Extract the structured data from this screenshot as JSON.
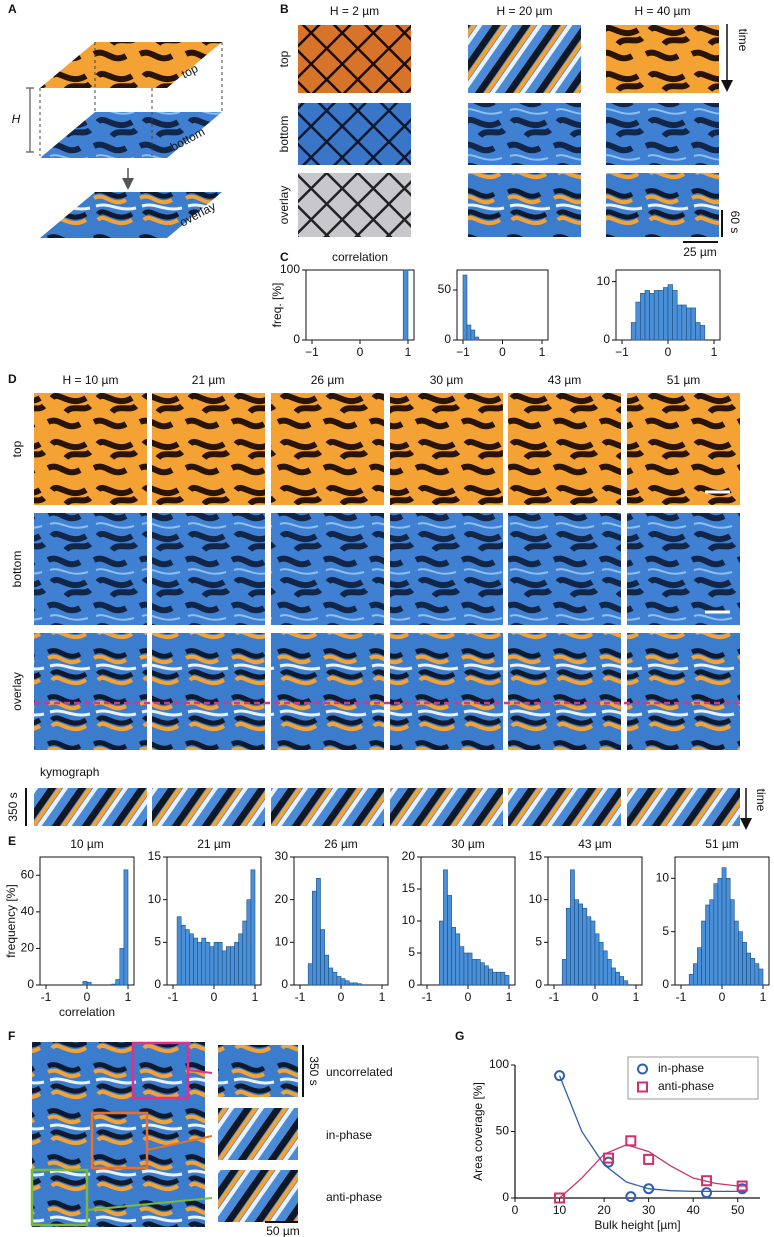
{
  "panel_labels": [
    "A",
    "B",
    "C",
    "D",
    "E",
    "F",
    "G"
  ],
  "panel_a": {
    "top": "top",
    "bottom": "bottom",
    "overlay": "overlay",
    "height": "H"
  },
  "panel_b": {
    "columns": [
      "H = 2 µm",
      "H = 20 µm",
      "H = 40 µm"
    ],
    "rows": [
      "top",
      "bottom",
      "overlay"
    ],
    "time": "time",
    "time_bar": "60 s",
    "scale_bar": "25 µm"
  },
  "panel_d": {
    "columns": [
      "H = 10 µm",
      "21 µm",
      "26 µm",
      "30 µm",
      "43 µm",
      "51 µm"
    ],
    "rows": [
      "top",
      "bottom",
      "overlay"
    ],
    "kymograph": "kymograph",
    "time_bar": "350 s",
    "time": "time"
  },
  "panel_f": {
    "rows": [
      "uncorrelated",
      "in-phase",
      "anti-phase"
    ],
    "time_bar": "350 s",
    "scale_bar": "50 µm"
  },
  "chart_data": [
    {
      "type": "histogram",
      "title": "correlation",
      "ylabel": "freq. [%]",
      "color": "#4a90d9",
      "bins": [
        0.9,
        1.0
      ],
      "values": [
        100
      ],
      "xlim": [
        -1,
        1
      ],
      "xticks": [
        {
          "value": -1,
          "label": "−1"
        },
        0,
        1
      ],
      "ylim": [
        0,
        100
      ],
      "yticks": [
        0,
        100
      ]
    },
    {
      "type": "histogram",
      "color": "#4a90d9",
      "bins": [
        -1,
        -0.9,
        -0.8,
        -0.7,
        -0.6
      ],
      "values": [
        65,
        15,
        10,
        3
      ],
      "xlim": [
        -1,
        1
      ],
      "xticks": [
        {
          "value": -1,
          "label": "−1"
        },
        0,
        1
      ],
      "ylim": [
        0,
        70
      ],
      "yticks": [
        0,
        50
      ]
    },
    {
      "type": "histogram",
      "color": "#4a90d9",
      "bins": [
        -0.8,
        -0.7,
        -0.6,
        -0.5,
        -0.4,
        -0.3,
        -0.2,
        -0.1,
        0,
        0.1,
        0.2,
        0.3,
        0.4,
        0.5,
        0.6,
        0.7,
        0.8
      ],
      "values": [
        3,
        6.5,
        8,
        8.5,
        8,
        8.5,
        8.5,
        9,
        9.5,
        8.5,
        6,
        6,
        5.5,
        5.5,
        3,
        2.5
      ],
      "xlim": [
        -1,
        1
      ],
      "xticks": [
        {
          "value": -1,
          "label": "−1"
        },
        0,
        1
      ],
      "ylim": [
        0,
        12
      ],
      "yticks": [
        0,
        10
      ]
    },
    {
      "type": "histogram",
      "title": "10 µm",
      "ylabel": "frequency [%]",
      "xlabel": "correlation",
      "color": "#4a90d9",
      "bins": [
        -0.1,
        0,
        0.1,
        0.2,
        0.3,
        0.4,
        0.5,
        0.6,
        0.7,
        0.8,
        0.9,
        1.0
      ],
      "values": [
        2,
        1.5,
        0,
        0,
        0,
        0,
        0,
        0.5,
        3,
        20,
        63
      ],
      "xlim": [
        -1,
        1
      ],
      "xticks": [
        {
          "value": -1,
          "label": "-1"
        },
        0,
        1
      ],
      "ylim": [
        0,
        70
      ],
      "yticks": [
        0,
        20,
        40,
        60
      ]
    },
    {
      "type": "histogram",
      "title": "21 µm",
      "color": "#4a90d9",
      "bins": [
        -0.9,
        -0.8,
        -0.7,
        -0.6,
        -0.5,
        -0.4,
        -0.3,
        -0.2,
        -0.1,
        0,
        0.1,
        0.2,
        0.3,
        0.4,
        0.5,
        0.6,
        0.7,
        0.8,
        0.9,
        1.0
      ],
      "values": [
        8,
        7,
        6.5,
        6,
        5.5,
        5,
        5.5,
        5,
        4.5,
        5,
        5,
        4,
        4.5,
        4.5,
        5,
        6,
        7.5,
        10,
        13.5
      ],
      "xlim": [
        -1,
        1
      ],
      "xticks": [
        {
          "value": -1,
          "label": "-1"
        },
        0,
        1
      ],
      "ylim": [
        0,
        15
      ],
      "yticks": [
        0,
        5,
        10,
        15
      ]
    },
    {
      "type": "histogram",
      "title": "26 µm",
      "color": "#4a90d9",
      "bins": [
        -0.8,
        -0.7,
        -0.6,
        -0.5,
        -0.4,
        -0.3,
        -0.2,
        -0.1,
        0,
        0.1,
        0.2,
        0.3,
        0.4,
        0.5
      ],
      "values": [
        5,
        22,
        25,
        13,
        7,
        4,
        3,
        2,
        1.5,
        1,
        0.5,
        0.5,
        0.3
      ],
      "xlim": [
        -1,
        1
      ],
      "xticks": [
        {
          "value": -1,
          "label": "-1"
        },
        0,
        1
      ],
      "ylim": [
        0,
        30
      ],
      "yticks": [
        0,
        10,
        20,
        30
      ]
    },
    {
      "type": "histogram",
      "title": "30 µm",
      "color": "#4a90d9",
      "bins": [
        -0.7,
        -0.6,
        -0.5,
        -0.4,
        -0.3,
        -0.2,
        -0.1,
        0,
        0.1,
        0.2,
        0.3,
        0.4,
        0.5,
        0.6,
        0.7,
        0.8,
        0.9,
        1.0
      ],
      "values": [
        10,
        18,
        14,
        9,
        8,
        6,
        5,
        5,
        4,
        4,
        3.5,
        3,
        2.5,
        2,
        2,
        2,
        1.5
      ],
      "xlim": [
        -1,
        1
      ],
      "xticks": [
        {
          "value": -1,
          "label": "-1"
        },
        0,
        1
      ],
      "ylim": [
        0,
        20
      ],
      "yticks": [
        0,
        5,
        10,
        15,
        20
      ]
    },
    {
      "type": "histogram",
      "title": "43 µm",
      "color": "#4a90d9",
      "bins": [
        -0.8,
        -0.7,
        -0.6,
        -0.5,
        -0.4,
        -0.3,
        -0.2,
        -0.1,
        0,
        0.1,
        0.2,
        0.3,
        0.4,
        0.5,
        0.6,
        0.7,
        0.8
      ],
      "values": [
        3,
        9,
        13.5,
        10,
        9.5,
        9,
        8,
        7.5,
        6,
        5,
        4,
        3,
        2,
        1.5,
        1,
        0.5
      ],
      "xlim": [
        -1,
        1
      ],
      "xticks": [
        {
          "value": -1,
          "label": "-1"
        },
        0,
        1
      ],
      "ylim": [
        0,
        15
      ],
      "yticks": [
        0,
        5,
        10,
        15
      ]
    },
    {
      "type": "histogram",
      "title": "51 µm",
      "color": "#4a90d9",
      "bins": [
        -0.8,
        -0.7,
        -0.6,
        -0.5,
        -0.4,
        -0.3,
        -0.2,
        -0.1,
        0,
        0.1,
        0.2,
        0.3,
        0.4,
        0.5,
        0.6,
        0.7,
        0.8,
        0.9,
        1.0
      ],
      "values": [
        1,
        2,
        3.5,
        6,
        7.5,
        8,
        9.5,
        10,
        11,
        10,
        8,
        6,
        5,
        4,
        3,
        2.5,
        2,
        1.5
      ],
      "xlim": [
        -1,
        1
      ],
      "xticks": [
        {
          "value": -1,
          "label": "-1"
        },
        0,
        1
      ],
      "ylim": [
        0,
        12
      ],
      "yticks": [
        0,
        5,
        10
      ]
    },
    {
      "type": "scatter",
      "xlabel": "Bulk height [µm]",
      "ylabel": "Area coverage [%]",
      "legend": "upper right",
      "xlim": [
        0,
        55
      ],
      "xticks": [
        0,
        10,
        20,
        30,
        40,
        50
      ],
      "ylim": [
        0,
        100
      ],
      "yticks": [
        0,
        50,
        100
      ],
      "fit_x": [
        10,
        15,
        20,
        25,
        30,
        35,
        40,
        45,
        50,
        52
      ],
      "series": [
        {
          "name": "in-phase",
          "color": "#2f5fb3",
          "marker": "circle",
          "x": [
            10,
            21,
            26,
            30,
            43,
            51
          ],
          "values": [
            92,
            27,
            1,
            7,
            4,
            7
          ],
          "fit": [
            92,
            50,
            25,
            12,
            7,
            5.5,
            5,
            5,
            5,
            5
          ]
        },
        {
          "name": "anti-phase",
          "color": "#d0306a",
          "marker": "square",
          "x": [
            10,
            21,
            26,
            30,
            43,
            51
          ],
          "values": [
            0,
            30,
            43,
            29,
            13,
            9
          ],
          "fit": [
            0,
            15,
            33,
            40,
            35,
            24,
            15,
            11,
            9,
            9
          ]
        }
      ]
    }
  ]
}
